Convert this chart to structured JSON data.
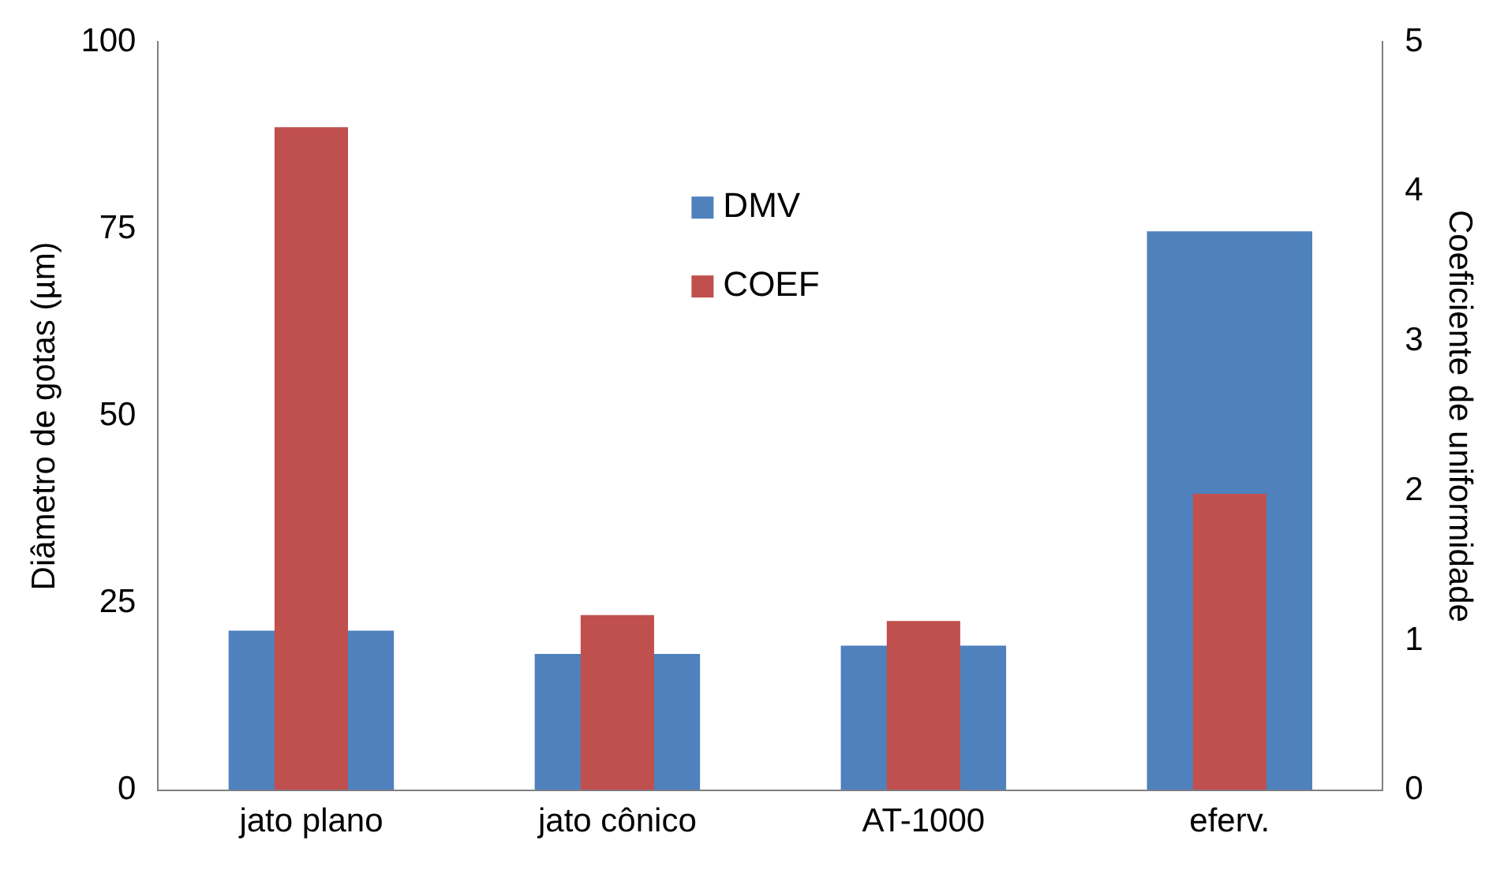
{
  "chart_data": {
    "type": "bar",
    "ylabel": "Diâmetro de gotas (µm)",
    "y2label": "Coeficiente de uniformidade",
    "categories": [
      "jato plano",
      "jato cônico",
      "AT-1000",
      "eferv."
    ],
    "series": [
      {
        "name": "DMV",
        "color": "#4f81bd",
        "values": [
          21.3,
          18.2,
          19.3,
          74.7
        ]
      },
      {
        "name": "COEF",
        "color": "#c0504d",
        "values": [
          4.43,
          1.17,
          1.13,
          1.98
        ],
        "axis": "y2"
      }
    ],
    "ylim": [
      0,
      100
    ],
    "yticks": [
      0,
      25,
      50,
      75,
      100
    ],
    "y2lim": [
      0,
      5
    ],
    "y2ticks": [
      0,
      1,
      2,
      3,
      4,
      5
    ],
    "grid": false,
    "legend": "top"
  }
}
